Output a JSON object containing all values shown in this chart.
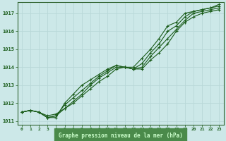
{
  "title": "Graphe pression niveau de la mer (hPa)",
  "bg_color": "#cce8e8",
  "grid_color": "#b8d8d8",
  "line_color": "#1a5c1a",
  "border_color": "#336633",
  "label_bg_color": "#4a8a4a",
  "label_text_color": "#ccffcc",
  "tick_text_color": "#1a5c1a",
  "xlim": [
    -0.5,
    23.5
  ],
  "ylim": [
    1010.8,
    1017.6
  ],
  "yticks": [
    1011,
    1012,
    1013,
    1014,
    1015,
    1016,
    1017
  ],
  "xticks": [
    0,
    1,
    2,
    3,
    4,
    5,
    6,
    7,
    8,
    9,
    10,
    11,
    12,
    13,
    14,
    15,
    16,
    17,
    18,
    19,
    20,
    21,
    22,
    23
  ],
  "series": [
    [
      1011.5,
      1011.6,
      1011.5,
      1011.3,
      1011.4,
      1011.7,
      1012.0,
      1012.4,
      1012.8,
      1013.2,
      1013.5,
      1013.9,
      1014.0,
      1013.9,
      1013.9,
      1014.4,
      1014.8,
      1015.3,
      1016.0,
      1016.5,
      1016.8,
      1017.0,
      1017.1,
      1017.2
    ],
    [
      1011.5,
      1011.6,
      1011.5,
      1011.2,
      1011.3,
      1011.7,
      1012.1,
      1012.5,
      1013.0,
      1013.4,
      1013.7,
      1014.0,
      1014.0,
      1013.9,
      1014.0,
      1014.6,
      1015.1,
      1015.6,
      1016.1,
      1016.6,
      1017.0,
      1017.1,
      1017.2,
      1017.3
    ],
    [
      1011.5,
      1011.6,
      1011.5,
      1011.2,
      1011.3,
      1011.9,
      1012.3,
      1012.7,
      1013.1,
      1013.5,
      1013.8,
      1014.1,
      1014.0,
      1013.9,
      1014.2,
      1014.8,
      1015.3,
      1016.0,
      1016.3,
      1016.8,
      1017.1,
      1017.2,
      1017.3,
      1017.4
    ],
    [
      1011.5,
      1011.6,
      1011.5,
      1011.2,
      1011.2,
      1012.0,
      1012.5,
      1013.0,
      1013.3,
      1013.6,
      1013.9,
      1014.1,
      1014.0,
      1014.0,
      1014.5,
      1015.0,
      1015.6,
      1016.3,
      1016.5,
      1017.0,
      1017.1,
      1017.2,
      1017.3,
      1017.5
    ]
  ]
}
